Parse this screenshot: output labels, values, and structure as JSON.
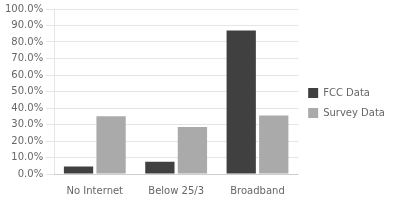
{
  "chart_data": {
    "type": "bar",
    "categories": [
      "No Internet",
      "Below 25/3",
      "Broadband"
    ],
    "series": [
      {
        "name": "FCC Data",
        "color": "#404040",
        "values": [
          4.5,
          7.5,
          87.0
        ]
      },
      {
        "name": "Survey Data",
        "color": "#aaaaaa",
        "values": [
          35.0,
          28.5,
          35.5
        ]
      }
    ],
    "ylim": [
      0,
      100
    ],
    "yticks": [
      {
        "value": 0,
        "label": "0.0%"
      },
      {
        "value": 10,
        "label": "10.0%"
      },
      {
        "value": 20,
        "label": "20.0%"
      },
      {
        "value": 30,
        "label": "30.0%"
      },
      {
        "value": 40,
        "label": "40.0%"
      },
      {
        "value": 50,
        "label": "50.0%"
      },
      {
        "value": 60,
        "label": "60.0%"
      },
      {
        "value": 70,
        "label": "70.0%"
      },
      {
        "value": 80,
        "label": "80.0%"
      },
      {
        "value": 90,
        "label": "90.0%"
      },
      {
        "value": 100,
        "label": "100.0%"
      }
    ],
    "grid": true,
    "legend": "right"
  }
}
